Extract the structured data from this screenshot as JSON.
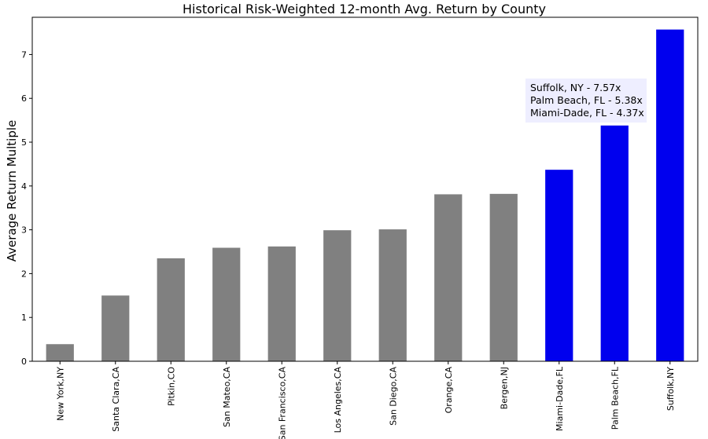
{
  "chart_data": {
    "type": "bar",
    "title": "Historical Risk-Weighted 12-month Avg. Return by County",
    "xlabel": "",
    "ylabel": "Average Return Multiple",
    "ylim": [
      0,
      7.85
    ],
    "yticks": [
      0,
      1,
      2,
      3,
      4,
      5,
      6,
      7
    ],
    "grid": false,
    "categories": [
      "New York,NY",
      "Santa Clara,CA",
      "Pitkin,CO",
      "San Mateo,CA",
      "San Francisco,CA",
      "Los Angeles,CA",
      "San Diego,CA",
      "Orange,CA",
      "Bergen,NJ",
      "Miami-Dade,FL",
      "Palm Beach,FL",
      "Suffolk,NY"
    ],
    "values": [
      0.39,
      1.5,
      2.35,
      2.59,
      2.62,
      2.99,
      3.01,
      3.81,
      3.82,
      4.37,
      5.38,
      7.57
    ],
    "colors": [
      "#808080",
      "#808080",
      "#808080",
      "#808080",
      "#808080",
      "#808080",
      "#808080",
      "#808080",
      "#808080",
      "#0000ee",
      "#0000ee",
      "#0000ee"
    ],
    "annotation": {
      "lines": [
        "Suffolk, NY - 7.57x",
        "Palm Beach, FL - 5.38x",
        "Miami-Dade, FL - 4.37x"
      ],
      "background": "#eeeeff"
    }
  }
}
